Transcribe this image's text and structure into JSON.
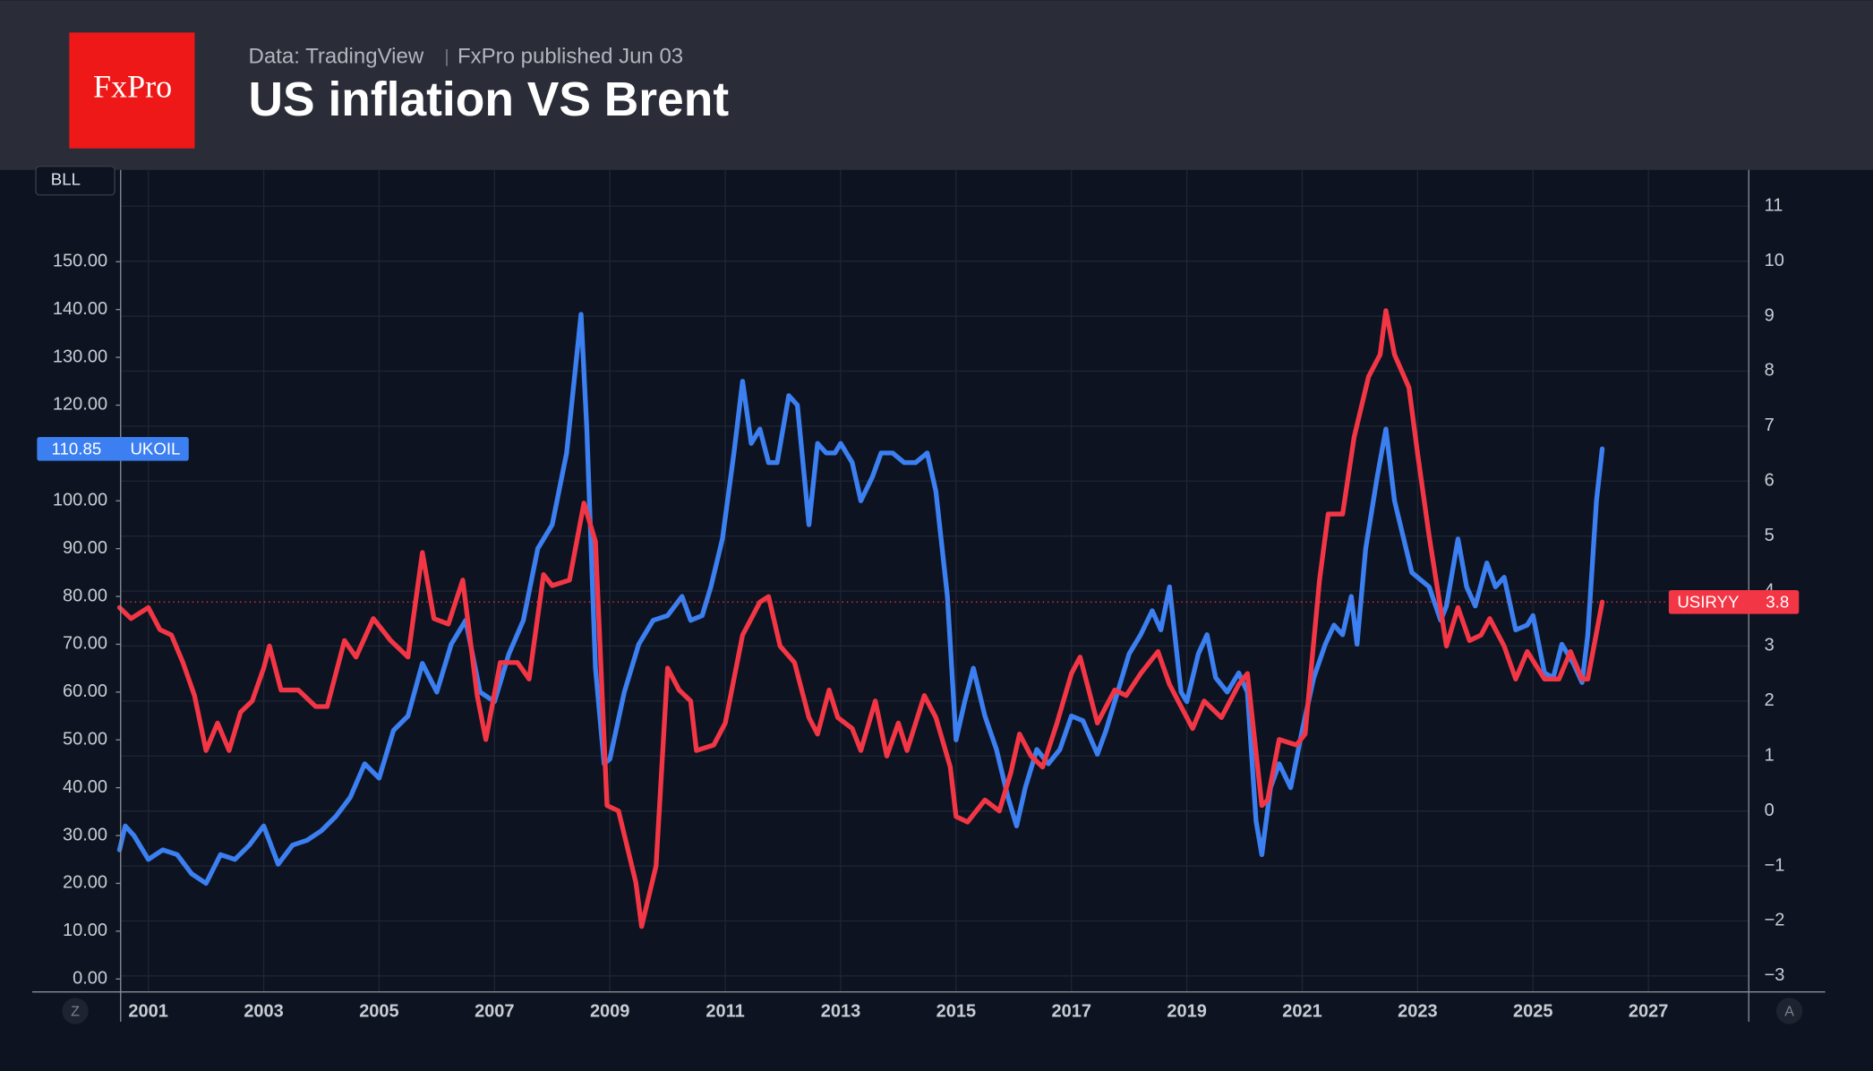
{
  "header": {
    "logo": "FxPro",
    "source": "Data: TradingView",
    "published": "FxPro published Jun 03"
  },
  "toolbar": {
    "scale_label": "BLL",
    "left_button": "Z",
    "right_button": "A"
  },
  "chart_data": {
    "type": "line",
    "title": "US inflation VS Brent",
    "xlim": [
      2000.52,
      2028.74
    ],
    "xticks": [
      2001,
      2003,
      2005,
      2007,
      2009,
      2011,
      2013,
      2015,
      2017,
      2019,
      2021,
      2023,
      2025,
      2027
    ],
    "ylim": [
      -2.7,
      169.2
    ],
    "yticks": [
      {
        "value": 0,
        "label": "0.00"
      },
      {
        "value": 10,
        "label": "10.00"
      },
      {
        "value": 20,
        "label": "20.00"
      },
      {
        "value": 30,
        "label": "30.00"
      },
      {
        "value": 40,
        "label": "40.00"
      },
      {
        "value": 50,
        "label": "50.00"
      },
      {
        "value": 60,
        "label": "60.00"
      },
      {
        "value": 70,
        "label": "70.00"
      },
      {
        "value": 80,
        "label": "80.00"
      },
      {
        "value": 90,
        "label": "90.00"
      },
      {
        "value": 100,
        "label": "100.00"
      },
      {
        "value": 110,
        "label": "110.00"
      },
      {
        "value": 120,
        "label": "120.00"
      },
      {
        "value": 130,
        "label": "130.00"
      },
      {
        "value": 140,
        "label": "140.00"
      },
      {
        "value": 150,
        "label": "150.00"
      }
    ],
    "y2lim": [
      -3.29,
      11.66
    ],
    "y2ticks": [
      {
        "value": -3,
        "label": "−3"
      },
      {
        "value": -2,
        "label": "−2"
      },
      {
        "value": -1,
        "label": "−1"
      },
      0,
      1,
      2,
      3,
      4,
      5,
      6,
      7,
      8,
      9,
      10,
      11
    ],
    "grid": true,
    "series": [
      {
        "name": "UKOIL",
        "color": "#3b7ff0",
        "axis": "y",
        "x": [
          2000.5,
          2000.6,
          2000.75,
          2001.0,
          2001.25,
          2001.5,
          2001.75,
          2002.0,
          2002.25,
          2002.5,
          2002.75,
          2003.0,
          2003.25,
          2003.5,
          2003.75,
          2004.0,
          2004.25,
          2004.5,
          2004.75,
          2005.0,
          2005.25,
          2005.5,
          2005.75,
          2006.0,
          2006.25,
          2006.5,
          2006.75,
          2007.0,
          2007.25,
          2007.5,
          2007.75,
          2008.0,
          2008.25,
          2008.5,
          2008.6,
          2008.75,
          2008.9,
          2009.0,
          2009.25,
          2009.5,
          2009.75,
          2010.0,
          2010.25,
          2010.4,
          2010.6,
          2010.75,
          2010.95,
          2011.15,
          2011.3,
          2011.45,
          2011.6,
          2011.75,
          2011.9,
          2012.1,
          2012.25,
          2012.45,
          2012.6,
          2012.75,
          2012.9,
          2013.0,
          2013.2,
          2013.35,
          2013.55,
          2013.7,
          2013.9,
          2014.1,
          2014.3,
          2014.5,
          2014.65,
          2014.85,
          2015.0,
          2015.15,
          2015.3,
          2015.5,
          2015.7,
          2015.9,
          2016.05,
          2016.2,
          2016.4,
          2016.6,
          2016.8,
          2017.0,
          2017.2,
          2017.45,
          2017.6,
          2017.8,
          2018.0,
          2018.2,
          2018.4,
          2018.55,
          2018.7,
          2018.9,
          2019.0,
          2019.2,
          2019.35,
          2019.5,
          2019.7,
          2019.9,
          2020.05,
          2020.2,
          2020.3,
          2020.45,
          2020.6,
          2020.8,
          2021.0,
          2021.2,
          2021.4,
          2021.55,
          2021.7,
          2021.85,
          2021.95,
          2022.1,
          2022.3,
          2022.45,
          2022.6,
          2022.8,
          2022.9,
          2023.0,
          2023.2,
          2023.4,
          2023.5,
          2023.7,
          2023.85,
          2024.0,
          2024.2,
          2024.35,
          2024.5,
          2024.7,
          2024.9,
          2025.0,
          2025.2,
          2025.35,
          2025.5,
          2025.7,
          2025.85,
          2025.95,
          2026.1,
          2026.2
        ],
        "values": [
          27,
          32,
          30,
          25,
          27,
          26,
          22,
          20,
          26,
          25,
          28,
          32,
          24,
          28,
          29,
          31,
          34,
          38,
          45,
          42,
          52,
          55,
          66,
          60,
          70,
          75,
          60,
          58,
          68,
          75,
          90,
          95,
          110,
          139,
          115,
          65,
          45,
          46,
          60,
          70,
          75,
          76,
          80,
          75,
          76,
          82,
          92,
          110,
          125,
          112,
          115,
          108,
          108,
          122,
          120,
          95,
          112,
          110,
          110,
          112,
          108,
          100,
          105,
          110,
          110,
          108,
          108,
          110,
          102,
          80,
          50,
          58,
          65,
          55,
          48,
          38,
          32,
          40,
          48,
          45,
          48,
          55,
          54,
          47,
          52,
          60,
          68,
          72,
          77,
          73,
          82,
          60,
          58,
          68,
          72,
          63,
          60,
          64,
          60,
          33,
          26,
          40,
          45,
          40,
          52,
          63,
          70,
          74,
          72,
          80,
          70,
          90,
          105,
          115,
          100,
          90,
          85,
          84,
          82,
          75,
          78,
          92,
          82,
          78,
          87,
          82,
          84,
          73,
          74,
          76,
          64,
          63,
          70,
          66,
          62,
          72,
          100,
          110.85
        ]
      },
      {
        "name": "USIRYY",
        "color": "#f23645",
        "axis": "y2",
        "x": [
          2000.5,
          2000.7,
          2001.0,
          2001.2,
          2001.4,
          2001.6,
          2001.8,
          2002.0,
          2002.2,
          2002.4,
          2002.6,
          2002.8,
          2003.0,
          2003.1,
          2003.3,
          2003.6,
          2003.9,
          2004.1,
          2004.4,
          2004.6,
          2004.9,
          2005.2,
          2005.5,
          2005.75,
          2005.95,
          2006.2,
          2006.45,
          2006.7,
          2006.85,
          2007.1,
          2007.4,
          2007.6,
          2007.85,
          2008.0,
          2008.3,
          2008.55,
          2008.75,
          2008.95,
          2009.15,
          2009.45,
          2009.55,
          2009.8,
          2010.0,
          2010.2,
          2010.4,
          2010.5,
          2010.8,
          2011.0,
          2011.3,
          2011.6,
          2011.75,
          2011.95,
          2012.2,
          2012.45,
          2012.6,
          2012.8,
          2012.95,
          2013.2,
          2013.35,
          2013.6,
          2013.8,
          2014.0,
          2014.15,
          2014.45,
          2014.65,
          2014.9,
          2015.0,
          2015.2,
          2015.5,
          2015.75,
          2015.95,
          2016.1,
          2016.3,
          2016.5,
          2016.75,
          2017.0,
          2017.15,
          2017.45,
          2017.75,
          2017.95,
          2018.2,
          2018.5,
          2018.7,
          2018.9,
          2019.1,
          2019.3,
          2019.6,
          2019.9,
          2020.05,
          2020.3,
          2020.4,
          2020.6,
          2020.9,
          2021.05,
          2021.3,
          2021.45,
          2021.7,
          2021.9,
          2022.15,
          2022.35,
          2022.45,
          2022.6,
          2022.85,
          2023.0,
          2023.2,
          2023.35,
          2023.5,
          2023.7,
          2023.9,
          2024.1,
          2024.25,
          2024.5,
          2024.7,
          2024.9,
          2025.2,
          2025.45,
          2025.65,
          2025.85,
          2025.95,
          2026.2
        ],
        "values": [
          3.7,
          3.5,
          3.7,
          3.3,
          3.2,
          2.7,
          2.1,
          1.1,
          1.6,
          1.1,
          1.8,
          2.0,
          2.6,
          3.0,
          2.2,
          2.2,
          1.9,
          1.9,
          3.1,
          2.8,
          3.5,
          3.1,
          2.8,
          4.7,
          3.5,
          3.4,
          4.2,
          2.1,
          1.3,
          2.7,
          2.7,
          2.4,
          4.3,
          4.1,
          4.2,
          5.6,
          4.9,
          0.1,
          0.0,
          -1.3,
          -2.1,
          -1.0,
          2.6,
          2.2,
          2.0,
          1.1,
          1.2,
          1.6,
          3.2,
          3.8,
          3.9,
          3.0,
          2.7,
          1.7,
          1.4,
          2.2,
          1.7,
          1.5,
          1.1,
          2.0,
          1.0,
          1.6,
          1.1,
          2.1,
          1.7,
          0.8,
          -0.1,
          -0.2,
          0.2,
          0.0,
          0.7,
          1.4,
          1.0,
          0.8,
          1.6,
          2.5,
          2.8,
          1.6,
          2.2,
          2.1,
          2.5,
          2.9,
          2.3,
          1.9,
          1.5,
          2.0,
          1.7,
          2.3,
          2.5,
          0.1,
          0.2,
          1.3,
          1.2,
          1.4,
          4.2,
          5.4,
          5.4,
          6.8,
          7.9,
          8.3,
          9.1,
          8.3,
          7.7,
          6.5,
          5.0,
          4.0,
          3.0,
          3.7,
          3.1,
          3.2,
          3.5,
          3.0,
          2.4,
          2.9,
          2.4,
          2.4,
          2.9,
          2.4,
          2.4,
          3.8
        ]
      }
    ]
  }
}
